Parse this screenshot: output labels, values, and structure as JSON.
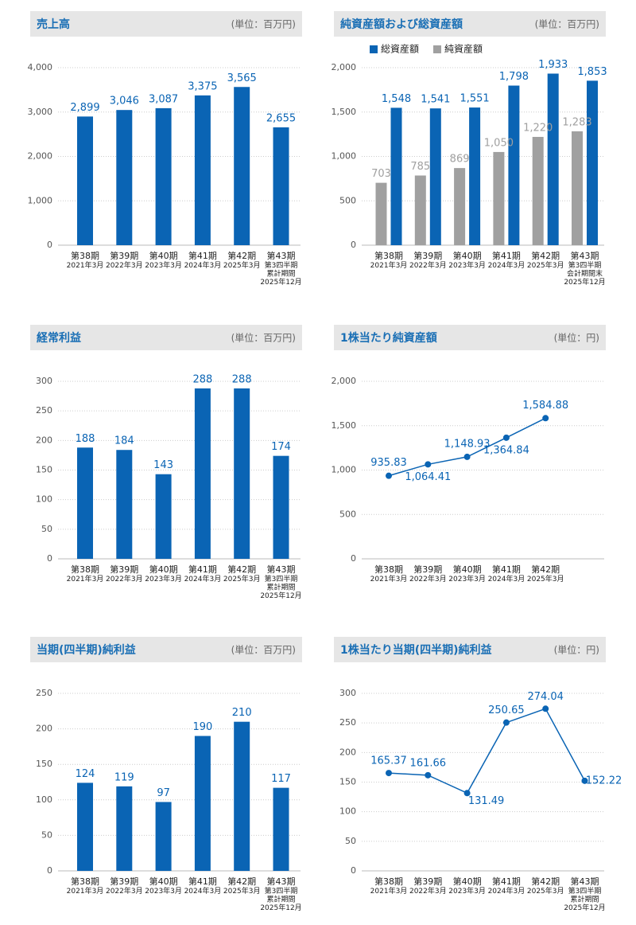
{
  "chart_data": [
    {
      "type": "bar",
      "title": "売上高",
      "unit": "(単位：百万円)",
      "categories": [
        [
          "第38期",
          "2021年3月"
        ],
        [
          "第39期",
          "2022年3月"
        ],
        [
          "第40期",
          "2023年3月"
        ],
        [
          "第41期",
          "2024年3月"
        ],
        [
          "第42期",
          "2025年3月"
        ],
        [
          "第43期",
          "第3四半期",
          "累計期間",
          "2025年12月"
        ]
      ],
      "values": [
        2899,
        3046,
        3087,
        3375,
        3565,
        2655
      ],
      "value_labels": [
        "2,899",
        "3,046",
        "3,087",
        "3,375",
        "3,565",
        "2,655"
      ],
      "color": "#0a64b4",
      "ylim": [
        0,
        4000
      ],
      "yticks": [
        0,
        {
          "value": 1000,
          "label": "1,000"
        },
        {
          "value": 2000,
          "label": "2,000"
        },
        {
          "value": 3000,
          "label": "3,000"
        },
        {
          "value": 4000,
          "label": "4,000"
        }
      ],
      "grid": true
    },
    {
      "type": "bar",
      "title": "純資産額および総資産額",
      "unit": "(単位：百万円)",
      "categories": [
        [
          "第38期",
          "2021年3月"
        ],
        [
          "第39期",
          "2022年3月"
        ],
        [
          "第40期",
          "2023年3月"
        ],
        [
          "第41期",
          "2024年3月"
        ],
        [
          "第42期",
          "2025年3月"
        ],
        [
          "第43期",
          "第3四半期",
          "会計期間末",
          "2025年12月"
        ]
      ],
      "series": [
        {
          "name": "総資産額",
          "color": "#0a64b4",
          "values": [
            1548,
            1541,
            1551,
            1798,
            1933,
            1853
          ],
          "value_labels": [
            "1,548",
            "1,541",
            "1,551",
            "1,798",
            "1,933",
            "1,853"
          ]
        },
        {
          "name": "純資産額",
          "color": "#a0a0a0",
          "values": [
            703,
            785,
            869,
            1050,
            1220,
            1283
          ],
          "value_labels": [
            "703",
            "785",
            "869",
            "1,050",
            "1,220",
            "1,283"
          ]
        }
      ],
      "ylim": [
        0,
        2000
      ],
      "yticks": [
        0,
        500,
        {
          "value": 1000,
          "label": "1,000"
        },
        {
          "value": 1500,
          "label": "1,500"
        },
        {
          "value": 2000,
          "label": "2,000"
        }
      ],
      "grid": true,
      "legend": "top"
    },
    {
      "type": "bar",
      "title": "経常利益",
      "unit": "(単位：百万円)",
      "categories": [
        [
          "第38期",
          "2021年3月"
        ],
        [
          "第39期",
          "2022年3月"
        ],
        [
          "第40期",
          "2023年3月"
        ],
        [
          "第41期",
          "2024年3月"
        ],
        [
          "第42期",
          "2025年3月"
        ],
        [
          "第43期",
          "第3四半期",
          "累計期間",
          "2025年12月"
        ]
      ],
      "values": [
        188,
        184,
        143,
        288,
        288,
        174
      ],
      "color": "#0a64b4",
      "ylim": [
        0,
        300
      ],
      "yticks": [
        0,
        50,
        100,
        150,
        200,
        250,
        300
      ],
      "grid": true
    },
    {
      "type": "line",
      "title": "1株当たり純資産額",
      "unit": "(単位：円)",
      "categories": [
        [
          "第38期",
          "2021年3月"
        ],
        [
          "第39期",
          "2022年3月"
        ],
        [
          "第40期",
          "2023年3月"
        ],
        [
          "第41期",
          "2024年3月"
        ],
        [
          "第42期",
          "2025年3月"
        ]
      ],
      "values": [
        935.83,
        1064.41,
        1148.93,
        1364.84,
        1584.88
      ],
      "value_labels": [
        "935.83",
        "1,064.41",
        "1,148.93",
        "1,364.84",
        "1,584.88"
      ],
      "color": "#0a64b4",
      "ylim": [
        0,
        2000
      ],
      "yticks": [
        0,
        500,
        {
          "value": 1000,
          "label": "1,000"
        },
        {
          "value": 1500,
          "label": "1,500"
        },
        {
          "value": 2000,
          "label": "2,000"
        }
      ],
      "grid": true
    },
    {
      "type": "bar",
      "title": "当期(四半期)純利益",
      "unit": "(単位：百万円)",
      "categories": [
        [
          "第38期",
          "2021年3月"
        ],
        [
          "第39期",
          "2022年3月"
        ],
        [
          "第40期",
          "2023年3月"
        ],
        [
          "第41期",
          "2024年3月"
        ],
        [
          "第42期",
          "2025年3月"
        ],
        [
          "第43期",
          "第3四半期",
          "累計期間",
          "2025年12月"
        ]
      ],
      "values": [
        124,
        119,
        97,
        190,
        210,
        117
      ],
      "color": "#0a64b4",
      "ylim": [
        0,
        250
      ],
      "yticks": [
        0,
        50,
        100,
        150,
        200,
        250
      ],
      "grid": true
    },
    {
      "type": "line",
      "title": "1株当たり当期(四半期)純利益",
      "unit": "(単位：円)",
      "categories": [
        [
          "第38期",
          "2021年3月"
        ],
        [
          "第39期",
          "2022年3月"
        ],
        [
          "第40期",
          "2023年3月"
        ],
        [
          "第41期",
          "2024年3月"
        ],
        [
          "第42期",
          "2025年3月"
        ],
        [
          "第43期",
          "第3四半期",
          "累計期間",
          "2025年12月"
        ]
      ],
      "values": [
        165.37,
        161.66,
        131.49,
        250.65,
        274.04,
        152.22
      ],
      "color": "#0a64b4",
      "ylim": [
        0,
        300
      ],
      "yticks": [
        0,
        50,
        100,
        150,
        200,
        250,
        300
      ],
      "grid": true
    }
  ]
}
